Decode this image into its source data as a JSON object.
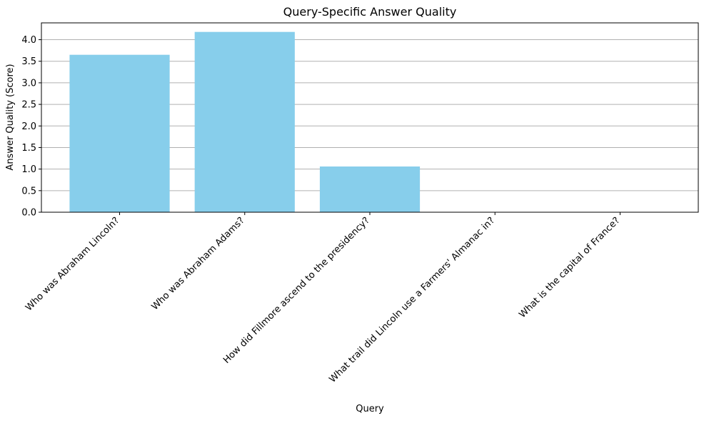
{
  "chart_data": {
    "type": "bar",
    "title": "Query-Specific Answer Quality",
    "xlabel": "Query",
    "ylabel": "Answer Quality (Score)",
    "categories": [
      "Who was Abraham Lincoln?",
      "Who was Abraham Adams?",
      "How did Fillmore ascend to the presidency?",
      "What trail did Lincoln use a Farmers' Almanac in?",
      "What is the capital of France?"
    ],
    "values": [
      3.65,
      4.18,
      1.06,
      0,
      0
    ],
    "ylim": [
      0,
      4.39
    ],
    "yticks": [
      0.0,
      0.5,
      1.0,
      1.5,
      2.0,
      2.5,
      3.0,
      3.5,
      4.0
    ],
    "ytick_labels": [
      "0.0",
      "0.5",
      "1.0",
      "1.5",
      "2.0",
      "2.5",
      "3.0",
      "3.5",
      "4.0"
    ],
    "grid": "y",
    "bar_color": "#87ceeb"
  }
}
